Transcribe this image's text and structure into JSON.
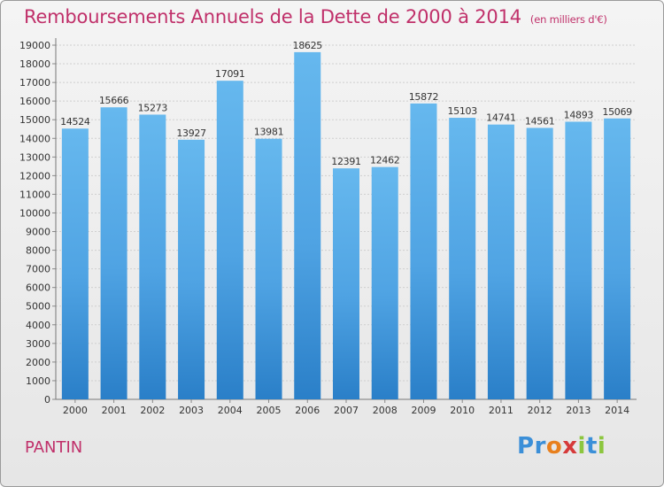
{
  "chart_data": {
    "type": "bar",
    "title": "Remboursements Annuels de la Dette de 2000 à 2014",
    "unit": "(en milliers d'€)",
    "categories": [
      "2000",
      "2001",
      "2002",
      "2003",
      "2004",
      "2005",
      "2006",
      "2007",
      "2008",
      "2009",
      "2010",
      "2011",
      "2012",
      "2013",
      "2014"
    ],
    "values": [
      14524,
      15666,
      15273,
      13927,
      17091,
      13981,
      18625,
      12391,
      12462,
      15872,
      15103,
      14741,
      14561,
      14893,
      15069
    ],
    "ylim": [
      0,
      19000
    ],
    "yticks": [
      0,
      1000,
      2000,
      3000,
      4000,
      5000,
      6000,
      7000,
      8000,
      9000,
      10000,
      11000,
      12000,
      13000,
      14000,
      15000,
      16000,
      17000,
      18000,
      19000
    ],
    "grid": true,
    "colors": {
      "bar_light": "#5fb2ea",
      "bar_dark": "#2a7fc8",
      "title": "#c0306a"
    }
  },
  "footer": {
    "city": "PANTIN"
  },
  "logo": {
    "letters": [
      {
        "ch": "P",
        "color": "#3b8fd8"
      },
      {
        "ch": "r",
        "color": "#3b8fd8"
      },
      {
        "ch": "o",
        "color": "#e8801e"
      },
      {
        "ch": "x",
        "color": "#d63a3a"
      },
      {
        "ch": "i",
        "color": "#8cc63e"
      },
      {
        "ch": "t",
        "color": "#3b8fd8"
      },
      {
        "ch": "i",
        "color": "#8cc63e"
      }
    ]
  }
}
